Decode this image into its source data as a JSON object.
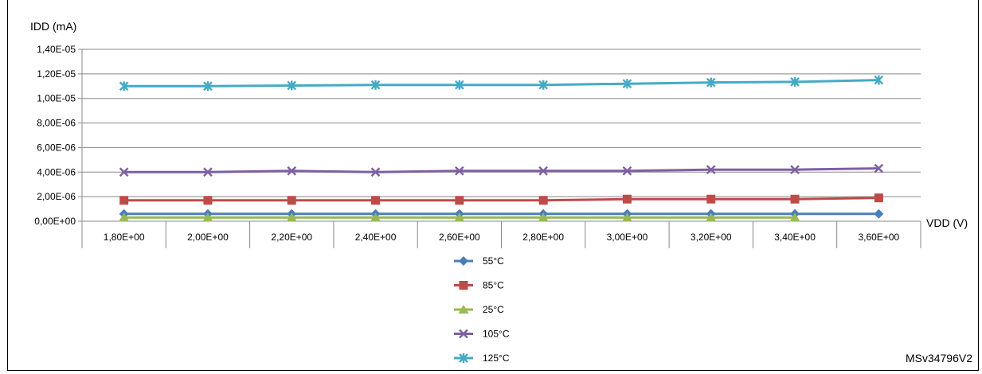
{
  "chart_data": {
    "type": "line",
    "title": "",
    "ylabel": "IDD (mA)",
    "xlabel": "VDD (V)",
    "categories": [
      "1,80E+00",
      "2,00E+00",
      "2,20E+00",
      "2,40E+00",
      "2,60E+00",
      "2,80E+00",
      "3,00E+00",
      "3,20E+00",
      "3,40E+00",
      "3,60E+00"
    ],
    "yticks": [
      "0,00E+00",
      "2,00E-06",
      "4,00E-06",
      "6,00E-06",
      "8,00E-06",
      "1,00E-05",
      "1,20E-05",
      "1,40E-05"
    ],
    "ylim": [
      0,
      1.4e-05
    ],
    "grid": true,
    "legend_position": "bottom",
    "series": [
      {
        "name": "55°C",
        "color": "#4a7ebb",
        "marker": "diamond",
        "values": [
          6e-07,
          6e-07,
          6e-07,
          6e-07,
          6e-07,
          6e-07,
          6e-07,
          6e-07,
          6e-07,
          6e-07
        ]
      },
      {
        "name": "85°C",
        "color": "#be4b48",
        "marker": "square",
        "values": [
          1.7e-06,
          1.7e-06,
          1.7e-06,
          1.7e-06,
          1.7e-06,
          1.7e-06,
          1.8e-06,
          1.8e-06,
          1.8e-06,
          1.9e-06
        ]
      },
      {
        "name": "25°C",
        "color": "#98b954",
        "marker": "triangle",
        "values": [
          3e-07,
          3e-07,
          3e-07,
          3e-07,
          3e-07,
          3e-07,
          3e-07,
          3e-07,
          3e-07,
          null
        ]
      },
      {
        "name": "105°C",
        "color": "#7d60a0",
        "marker": "x",
        "values": [
          4e-06,
          4e-06,
          4.1e-06,
          4e-06,
          4.1e-06,
          4.1e-06,
          4.1e-06,
          4.2e-06,
          4.2e-06,
          4.3e-06
        ]
      },
      {
        "name": "125°C",
        "color": "#46aac5",
        "marker": "star",
        "values": [
          1.1e-05,
          1.1e-05,
          1.105e-05,
          1.11e-05,
          1.11e-05,
          1.11e-05,
          1.12e-05,
          1.13e-05,
          1.135e-05,
          1.15e-05
        ]
      }
    ]
  },
  "reference_code": "MSv34796V2"
}
